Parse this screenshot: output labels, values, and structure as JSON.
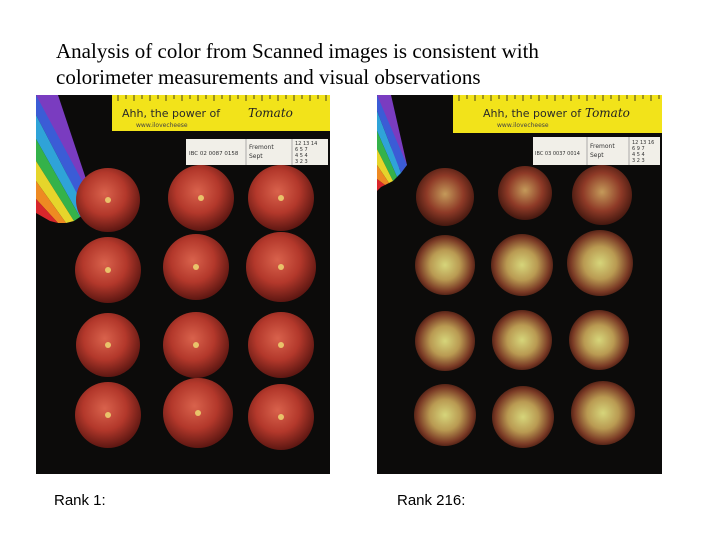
{
  "slide": {
    "title_line1": "Analysis of color from Scanned images is consistent with",
    "title_line2": "colorimeter measurements and visual observations"
  },
  "scans": [
    {
      "caption": "Rank 1:",
      "ruler_text": "Ahh, the power of",
      "ruler_handwriting": "Tomato",
      "ruler_url": "www.ilovecheese",
      "card_id": "IBC 02 0087 0158",
      "card_note_1": "Fremont",
      "card_note_2": "Sept",
      "card_grid": [
        "12 13 14",
        "6 5 7",
        "4 5 4",
        "3 2 3"
      ]
    },
    {
      "caption": "Rank 216:",
      "ruler_text": "Ahh, the power of",
      "ruler_handwriting": "Tomato",
      "ruler_url": "www.ilovecheese",
      "card_id": "IBC 03 0037 0014",
      "card_note_1": "Fremont",
      "card_note_2": "Sept",
      "card_grid": [
        "12 13 16",
        "6 9 7",
        "4 5 4",
        "3 2 3"
      ]
    }
  ],
  "colors": {
    "panel_background": "#0c0b0a",
    "ruler_yellow": "#f2e31a",
    "tomato_red": "#b8362a",
    "tomato_pale": "#c8d47a"
  }
}
